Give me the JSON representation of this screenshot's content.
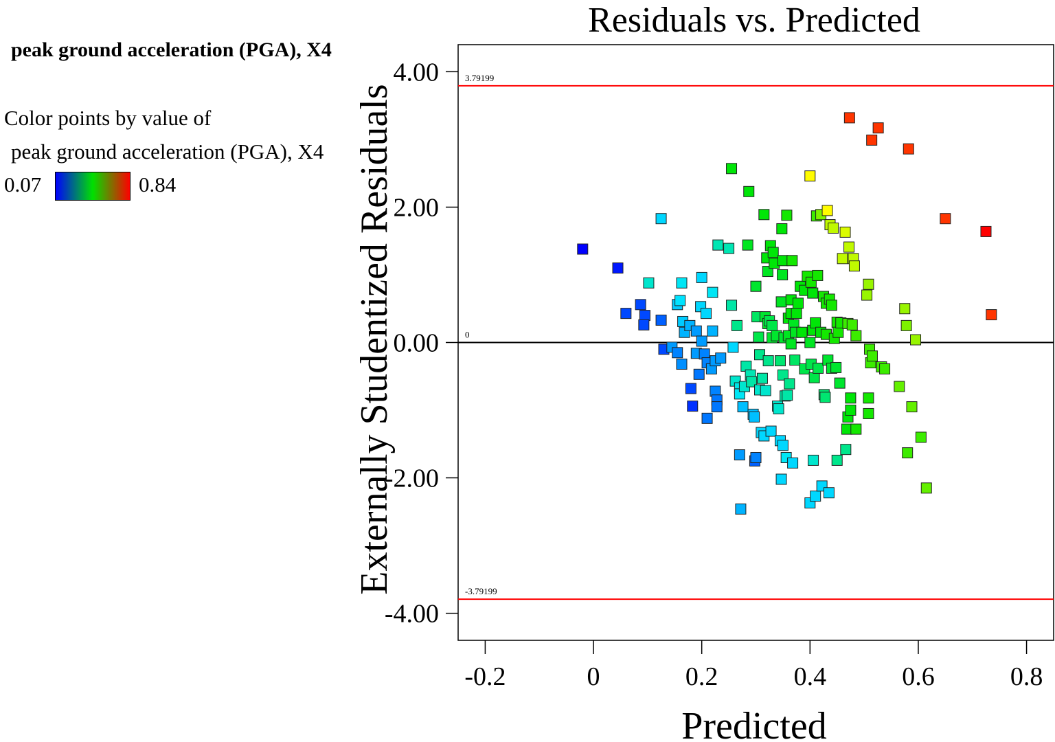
{
  "legend": {
    "title": "peak ground acceleration (PGA), X4",
    "line1": "Color points by value of",
    "line2": "peak ground acceleration (PGA), X4",
    "min": "0.07",
    "max": "0.84",
    "min_color": "#0000ff",
    "max_color": "#ff0000"
  },
  "colors": {
    "limit_line": "#ff0000",
    "zero_line": "#000000",
    "frame": "#000000"
  },
  "chart_data": {
    "type": "scatter",
    "title": "Residuals vs. Predicted",
    "xlabel": "Predicted",
    "ylabel": "Externally Studentized Residuals",
    "xlim": [
      -0.25,
      0.85
    ],
    "ylim": [
      -4.4,
      4.4
    ],
    "xticks": [
      -0.2,
      0,
      0.2,
      0.4,
      0.6,
      0.8
    ],
    "xtick_labels": [
      "-0.2",
      "0",
      "0.2",
      "0.4",
      "0.6",
      "0.8"
    ],
    "yticks": [
      4,
      2,
      0,
      -2,
      -4
    ],
    "ytick_labels": [
      "4.00",
      "2.00",
      "0.00",
      "-2.00",
      "-4.00"
    ],
    "hlines": [
      {
        "y": 3.79199,
        "label": "3.79199",
        "kind": "limit"
      },
      {
        "y": 0,
        "label": "0",
        "kind": "zero"
      },
      {
        "y": -3.79199,
        "label": "-3.79199",
        "kind": "limit"
      }
    ],
    "color_range": [
      0.07,
      0.84
    ],
    "color_variable": "peak ground acceleration (PGA), X4",
    "points": [
      [
        -0.02,
        1.38,
        0.07
      ],
      [
        0.045,
        1.1,
        0.09
      ],
      [
        0.06,
        0.43,
        0.13
      ],
      [
        0.087,
        0.56,
        0.13
      ],
      [
        0.095,
        0.4,
        0.13
      ],
      [
        0.093,
        0.26,
        0.13
      ],
      [
        0.102,
        0.88,
        0.3
      ],
      [
        0.125,
        0.33,
        0.15
      ],
      [
        0.125,
        1.83,
        0.25
      ],
      [
        0.13,
        -0.1,
        0.13
      ],
      [
        0.145,
        -0.07,
        0.2
      ],
      [
        0.155,
        -0.15,
        0.18
      ],
      [
        0.155,
        0.56,
        0.24
      ],
      [
        0.16,
        0.62,
        0.26
      ],
      [
        0.163,
        0.88,
        0.27
      ],
      [
        0.163,
        -0.32,
        0.19
      ],
      [
        0.165,
        0.31,
        0.24
      ],
      [
        0.168,
        0.15,
        0.22
      ],
      [
        0.178,
        0.25,
        0.22
      ],
      [
        0.18,
        -0.68,
        0.13
      ],
      [
        0.183,
        -0.94,
        0.11
      ],
      [
        0.19,
        0.17,
        0.2
      ],
      [
        0.19,
        -0.16,
        0.2
      ],
      [
        0.195,
        -0.47,
        0.17
      ],
      [
        0.198,
        0.53,
        0.25
      ],
      [
        0.2,
        0.96,
        0.25
      ],
      [
        0.2,
        0.02,
        0.2
      ],
      [
        0.205,
        -0.17,
        0.18
      ],
      [
        0.208,
        0.43,
        0.25
      ],
      [
        0.21,
        -0.3,
        0.18
      ],
      [
        0.21,
        -1.12,
        0.17
      ],
      [
        0.218,
        -0.39,
        0.2
      ],
      [
        0.22,
        0.17,
        0.22
      ],
      [
        0.22,
        0.74,
        0.27
      ],
      [
        0.225,
        -0.27,
        0.2
      ],
      [
        0.225,
        -0.72,
        0.18
      ],
      [
        0.228,
        -0.85,
        0.17
      ],
      [
        0.228,
        -0.95,
        0.17
      ],
      [
        0.23,
        1.44,
        0.32
      ],
      [
        0.235,
        -0.23,
        0.2
      ],
      [
        0.25,
        1.39,
        0.32
      ],
      [
        0.255,
        0.55,
        0.33
      ],
      [
        0.255,
        2.57,
        0.45
      ],
      [
        0.258,
        -0.07,
        0.25
      ],
      [
        0.262,
        -0.57,
        0.3
      ],
      [
        0.265,
        0.25,
        0.35
      ],
      [
        0.27,
        -0.67,
        0.28
      ],
      [
        0.27,
        -0.76,
        0.27
      ],
      [
        0.27,
        -1.66,
        0.2
      ],
      [
        0.272,
        -2.46,
        0.22
      ],
      [
        0.276,
        -0.95,
        0.23
      ],
      [
        0.279,
        -0.65,
        0.3
      ],
      [
        0.282,
        -0.35,
        0.33
      ],
      [
        0.285,
        1.44,
        0.43
      ],
      [
        0.287,
        2.23,
        0.45
      ],
      [
        0.29,
        -0.48,
        0.32
      ],
      [
        0.292,
        -0.58,
        0.33
      ],
      [
        0.295,
        -1.06,
        0.23
      ],
      [
        0.297,
        -1.1,
        0.23
      ],
      [
        0.298,
        -1.75,
        0.15
      ],
      [
        0.3,
        -1.7,
        0.18
      ],
      [
        0.3,
        0.83,
        0.42
      ],
      [
        0.302,
        0.38,
        0.38
      ],
      [
        0.305,
        0.08,
        0.4
      ],
      [
        0.307,
        -0.18,
        0.35
      ],
      [
        0.307,
        -0.7,
        0.3
      ],
      [
        0.31,
        -1.33,
        0.25
      ],
      [
        0.312,
        -0.53,
        0.33
      ],
      [
        0.315,
        -1.38,
        0.25
      ],
      [
        0.315,
        1.89,
        0.45
      ],
      [
        0.317,
        0.38,
        0.42
      ],
      [
        0.318,
        -0.71,
        0.3
      ],
      [
        0.32,
        1.25,
        0.45
      ],
      [
        0.322,
        1.05,
        0.43
      ],
      [
        0.322,
        0.28,
        0.42
      ],
      [
        0.323,
        -0.27,
        0.35
      ],
      [
        0.325,
        0.32,
        0.4
      ],
      [
        0.327,
        1.43,
        0.45
      ],
      [
        0.328,
        -1.31,
        0.25
      ],
      [
        0.33,
        0.25,
        0.4
      ],
      [
        0.33,
        0.07,
        0.42
      ],
      [
        0.332,
        1.33,
        0.45
      ],
      [
        0.334,
        1.17,
        0.45
      ],
      [
        0.338,
        0.1,
        0.42
      ],
      [
        0.34,
        -0.94,
        0.3
      ],
      [
        0.342,
        -0.98,
        0.3
      ],
      [
        0.345,
        -1.45,
        0.25
      ],
      [
        0.345,
        -0.27,
        0.37
      ],
      [
        0.347,
        -2.02,
        0.25
      ],
      [
        0.347,
        0.6,
        0.43
      ],
      [
        0.348,
        1.68,
        0.45
      ],
      [
        0.349,
        1.0,
        0.43
      ],
      [
        0.35,
        1.21,
        0.45
      ],
      [
        0.35,
        -0.48,
        0.35
      ],
      [
        0.35,
        -1.52,
        0.25
      ],
      [
        0.352,
        0.07,
        0.42
      ],
      [
        0.354,
        -0.79,
        0.33
      ],
      [
        0.356,
        -1.7,
        0.27
      ],
      [
        0.357,
        1.88,
        0.47
      ],
      [
        0.358,
        -0.78,
        0.33
      ],
      [
        0.36,
        0.36,
        0.45
      ],
      [
        0.36,
        0.1,
        0.43
      ],
      [
        0.362,
        -0.61,
        0.35
      ],
      [
        0.365,
        0.63,
        0.45
      ],
      [
        0.365,
        0.43,
        0.45
      ],
      [
        0.365,
        -0.02,
        0.43
      ],
      [
        0.367,
        1.21,
        0.47
      ],
      [
        0.368,
        -1.78,
        0.25
      ],
      [
        0.37,
        0.26,
        0.43
      ],
      [
        0.372,
        -0.26,
        0.38
      ],
      [
        0.373,
        0.15,
        0.43
      ],
      [
        0.375,
        0.43,
        0.45
      ],
      [
        0.378,
        0.58,
        0.45
      ],
      [
        0.382,
        0.83,
        0.45
      ],
      [
        0.385,
        0.15,
        0.45
      ],
      [
        0.39,
        0.77,
        0.45
      ],
      [
        0.39,
        -0.39,
        0.4
      ],
      [
        0.395,
        0.98,
        0.47
      ],
      [
        0.4,
        0.0,
        0.43
      ],
      [
        0.4,
        2.46,
        0.65
      ],
      [
        0.4,
        -2.37,
        0.25
      ],
      [
        0.402,
        -0.32,
        0.4
      ],
      [
        0.402,
        0.89,
        0.47
      ],
      [
        0.405,
        0.18,
        0.45
      ],
      [
        0.405,
        0.73,
        0.45
      ],
      [
        0.406,
        -1.74,
        0.3
      ],
      [
        0.408,
        -0.52,
        0.4
      ],
      [
        0.41,
        -2.27,
        0.25
      ],
      [
        0.41,
        0.29,
        0.45
      ],
      [
        0.412,
        1.87,
        0.5
      ],
      [
        0.414,
        0.99,
        0.47
      ],
      [
        0.415,
        -0.38,
        0.4
      ],
      [
        0.42,
        1.89,
        0.55
      ],
      [
        0.42,
        0.15,
        0.45
      ],
      [
        0.422,
        -2.12,
        0.25
      ],
      [
        0.425,
        0.68,
        0.47
      ],
      [
        0.426,
        -0.77,
        0.37
      ],
      [
        0.428,
        -0.81,
        0.37
      ],
      [
        0.43,
        0.12,
        0.47
      ],
      [
        0.43,
        0.58,
        0.47
      ],
      [
        0.432,
        1.95,
        0.65
      ],
      [
        0.433,
        -0.26,
        0.42
      ],
      [
        0.435,
        -2.22,
        0.25
      ],
      [
        0.436,
        0.64,
        0.47
      ],
      [
        0.437,
        1.74,
        0.6
      ],
      [
        0.44,
        0.55,
        0.47
      ],
      [
        0.44,
        -0.38,
        0.42
      ],
      [
        0.443,
        1.69,
        0.6
      ],
      [
        0.445,
        0.06,
        0.47
      ],
      [
        0.448,
        -0.37,
        0.42
      ],
      [
        0.45,
        0.3,
        0.47
      ],
      [
        0.45,
        -1.74,
        0.35
      ],
      [
        0.452,
        0.15,
        0.47
      ],
      [
        0.455,
        -0.6,
        0.42
      ],
      [
        0.457,
        0.29,
        0.47
      ],
      [
        0.46,
        1.24,
        0.6
      ],
      [
        0.465,
        1.63,
        0.62
      ],
      [
        0.466,
        -1.58,
        0.35
      ],
      [
        0.468,
        -1.28,
        0.45
      ],
      [
        0.47,
        -1.1,
        0.45
      ],
      [
        0.47,
        0.28,
        0.5
      ],
      [
        0.472,
        1.41,
        0.6
      ],
      [
        0.473,
        3.32,
        0.8
      ],
      [
        0.475,
        -0.82,
        0.45
      ],
      [
        0.475,
        -1.0,
        0.45
      ],
      [
        0.478,
        0.26,
        0.5
      ],
      [
        0.48,
        1.24,
        0.6
      ],
      [
        0.482,
        1.13,
        0.6
      ],
      [
        0.485,
        -1.28,
        0.47
      ],
      [
        0.485,
        0.1,
        0.5
      ],
      [
        0.505,
        0.7,
        0.57
      ],
      [
        0.508,
        -1.05,
        0.47
      ],
      [
        0.508,
        -0.82,
        0.47
      ],
      [
        0.508,
        0.86,
        0.57
      ],
      [
        0.51,
        -0.1,
        0.5
      ],
      [
        0.512,
        -0.3,
        0.5
      ],
      [
        0.514,
        2.99,
        0.8
      ],
      [
        0.515,
        -0.2,
        0.5
      ],
      [
        0.526,
        3.17,
        0.8
      ],
      [
        0.532,
        -0.36,
        0.5
      ],
      [
        0.538,
        -0.39,
        0.5
      ],
      [
        0.565,
        -0.65,
        0.53
      ],
      [
        0.575,
        0.5,
        0.57
      ],
      [
        0.578,
        0.25,
        0.55
      ],
      [
        0.58,
        -1.63,
        0.5
      ],
      [
        0.582,
        2.86,
        0.8
      ],
      [
        0.588,
        -0.95,
        0.53
      ],
      [
        0.595,
        0.04,
        0.57
      ],
      [
        0.605,
        -1.4,
        0.5
      ],
      [
        0.615,
        -2.15,
        0.53
      ],
      [
        0.65,
        1.83,
        0.8
      ],
      [
        0.725,
        1.64,
        0.84
      ],
      [
        0.735,
        0.41,
        0.8
      ]
    ]
  }
}
